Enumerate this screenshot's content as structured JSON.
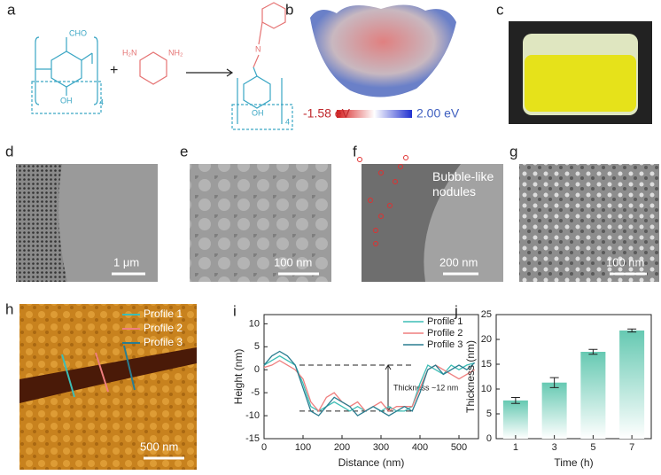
{
  "panels": {
    "a": {
      "label": "a",
      "reactant1": {
        "group": "CHO",
        "hydroxyl": "OH",
        "repeat": "4"
      },
      "plus": "+",
      "reactant2": {
        "amine_left": "H₂N",
        "amine_right": "NH₂"
      },
      "product": {
        "imine": "N",
        "hydroxyl": "OH",
        "repeat": "4"
      }
    },
    "b": {
      "label": "b",
      "colorbar_min": "-1.58  eV",
      "colorbar_max": "2.00  eV"
    },
    "c": {
      "label": "c"
    },
    "d": {
      "label": "d",
      "scale_bar": "1 μm"
    },
    "e": {
      "label": "e",
      "scale_bar": "100 nm"
    },
    "f": {
      "label": "f",
      "scale_bar": "200 nm",
      "annotation": "Bubble-like\nnodules"
    },
    "g": {
      "label": "g",
      "scale_bar": "100 nm"
    },
    "h": {
      "label": "h",
      "scale_bar": "500 nm",
      "profiles": [
        "Profile 1",
        "Profile 2",
        "Profile 3"
      ]
    },
    "i": {
      "label": "i"
    },
    "j": {
      "label": "j"
    }
  },
  "chart_data": [
    {
      "type": "line",
      "x_label": "Distance (nm)",
      "y_label": "Height (nm)",
      "annotation": "Thickness ~12 nm",
      "x": [
        0,
        20,
        40,
        60,
        80,
        100,
        120,
        140,
        160,
        180,
        200,
        220,
        240,
        260,
        280,
        300,
        320,
        340,
        360,
        380,
        400,
        420,
        440,
        460,
        480,
        500,
        520,
        540
      ],
      "series": [
        {
          "name": "Profile 1",
          "color": "#3dbdb5",
          "values": [
            1,
            2,
            3,
            2,
            1,
            -3,
            -8,
            -9,
            -8,
            -7,
            -8,
            -9,
            -8,
            -9,
            -8,
            -9,
            -8,
            -9,
            -9,
            -8,
            -3,
            1,
            0,
            -1,
            1,
            0,
            1,
            1.5
          ]
        },
        {
          "name": "Profile 2",
          "color": "#ef7f7f",
          "values": [
            0.5,
            1,
            2,
            1,
            0,
            -2,
            -7,
            -9,
            -6,
            -5,
            -7,
            -8,
            -7,
            -9,
            -8,
            -7,
            -9,
            -8,
            -8,
            -8,
            -4,
            0,
            1,
            0,
            -1,
            -2,
            -1,
            0
          ]
        },
        {
          "name": "Profile 3",
          "color": "#2a7d90",
          "values": [
            1,
            3,
            4,
            3,
            1,
            -4,
            -9,
            -10,
            -8,
            -6,
            -7,
            -8,
            -10,
            -9,
            -8,
            -9,
            -10,
            -9,
            -8,
            -9,
            -5,
            0,
            1,
            -1,
            0,
            1,
            0,
            1.5
          ]
        }
      ],
      "reference_lines": [
        1,
        -9
      ],
      "xlim": [
        0,
        550
      ],
      "xticks": [
        0,
        100,
        200,
        300,
        400,
        500
      ],
      "ylim": [
        -15,
        12
      ],
      "yticks": [
        -15,
        -10,
        -5,
        0,
        5,
        10
      ],
      "legend": "upper right"
    },
    {
      "type": "bar",
      "x_label": "Time (h)",
      "y_label": "Thickness (nm)",
      "color": "#66c9b2",
      "categories": [
        "1",
        "3",
        "5",
        "7"
      ],
      "values": [
        7.7,
        11.3,
        17.5,
        21.8
      ],
      "errors": [
        0.6,
        1.0,
        0.5,
        0.3
      ],
      "ylim": [
        0,
        25
      ],
      "yticks": [
        0,
        5,
        10,
        15,
        20,
        25
      ]
    }
  ]
}
